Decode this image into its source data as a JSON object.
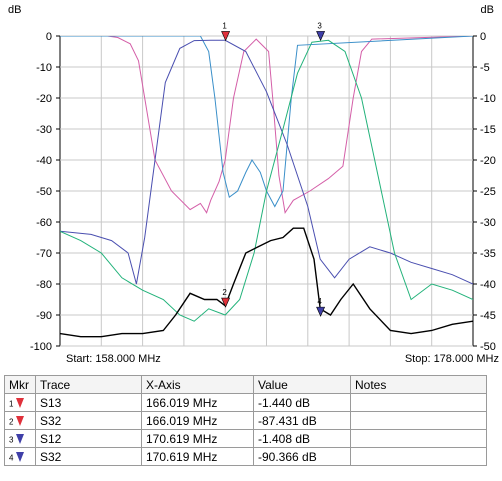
{
  "chart_data": {
    "type": "line",
    "y_unit_left": "dB",
    "y_unit_right": "dB",
    "left_axis": {
      "ylim": [
        -100,
        0
      ],
      "ticks": [
        0,
        -10,
        -20,
        -30,
        -40,
        -50,
        -60,
        -70,
        -80,
        -90,
        -100
      ]
    },
    "right_axis": {
      "ylim": [
        -50,
        0
      ],
      "ticks": [
        0,
        -5,
        -10,
        -15,
        -20,
        -25,
        -30,
        -35,
        -40,
        -45,
        -50
      ]
    },
    "xlim": [
      158.0,
      178.0
    ],
    "start_label": "Start: 158.000 MHz",
    "stop_label": "Stop: 178.000 MHz",
    "grid": true,
    "series": [
      {
        "color": "#d45fa8",
        "axis": "left",
        "x": [
          158.0,
          160.3,
          160.8,
          161.4,
          161.8,
          162.1,
          162.6,
          163.4,
          164.3,
          164.8,
          165.1,
          165.3,
          165.7,
          166.0,
          166.4,
          166.9,
          167.5,
          168.1,
          168.3,
          168.6,
          168.9,
          169.3,
          170.1,
          171.0,
          171.7,
          172.2,
          172.6,
          173.1,
          178.0
        ],
        "y": [
          0,
          0,
          -0.5,
          -2.5,
          -8,
          -20,
          -40,
          -50,
          -56,
          -54,
          -57,
          -53,
          -47,
          -40,
          -20,
          -5,
          -1,
          -5,
          -20,
          -45,
          -57,
          -53,
          -50,
          -46,
          -42,
          -20,
          -5,
          -1,
          0
        ]
      },
      {
        "color": "#3a8fc9",
        "axis": "left",
        "x": [
          158.0,
          164.8,
          165.2,
          165.5,
          165.9,
          166.2,
          166.6,
          167.0,
          167.3,
          167.7,
          168.0,
          168.4,
          168.8,
          169.2,
          169.5,
          178.0
        ],
        "y": [
          0,
          0,
          -5,
          -20,
          -44,
          -52,
          -50,
          -44,
          -40,
          -44,
          -50,
          -55,
          -50,
          -20,
          -3,
          0
        ]
      },
      {
        "color": "#4a4fb0",
        "axis": "left",
        "x": [
          158.0,
          159.5,
          160.5,
          161.3,
          161.7,
          162.1,
          162.6,
          163.1,
          163.8,
          164.5,
          165.3,
          166.0,
          167.0,
          168.0,
          169.0,
          170.0,
          170.6,
          171.3,
          172.0,
          173.0,
          174.0,
          175.0,
          176.0,
          177.0,
          178.0
        ],
        "y": [
          -63,
          -64,
          -66,
          -70,
          -80,
          -65,
          -40,
          -15,
          -4,
          -1.5,
          -1.4,
          -1.4,
          -5,
          -18,
          -35,
          -55,
          -72,
          -78,
          -72,
          -68,
          -70,
          -73,
          -75,
          -77,
          -80
        ]
      },
      {
        "color": "#22b27a",
        "axis": "left",
        "x": [
          158.0,
          159.0,
          160.0,
          161.0,
          162.0,
          163.0,
          163.8,
          164.5,
          165.2,
          166.0,
          166.7,
          167.4,
          168.0,
          168.8,
          169.5,
          170.2,
          171.0,
          171.8,
          172.6,
          173.4,
          174.2,
          175.0,
          176.0,
          177.0,
          178.0
        ],
        "y": [
          -63,
          -66,
          -70,
          -78,
          -82,
          -85,
          -90,
          -92,
          -88,
          -90,
          -85,
          -70,
          -50,
          -30,
          -12,
          -2,
          -1.4,
          -5,
          -20,
          -45,
          -70,
          -85,
          -80,
          -82,
          -85
        ]
      },
      {
        "color": "#000000",
        "axis": "left",
        "x": [
          158.0,
          159.0,
          160.0,
          161.0,
          162.0,
          163.0,
          163.6,
          164.3,
          165.0,
          165.6,
          166.0,
          166.4,
          167.0,
          167.6,
          168.2,
          168.8,
          169.3,
          169.8,
          170.3,
          170.6,
          171.1,
          171.6,
          172.2,
          173.0,
          174.0,
          175.0,
          176.0,
          177.0,
          178.0
        ],
        "y": [
          -96,
          -97,
          -97,
          -96,
          -96,
          -95,
          -90,
          -83,
          -85,
          -85,
          -87,
          -80,
          -70,
          -68,
          -66,
          -65,
          -62,
          -62,
          -72,
          -88,
          -90,
          -85,
          -80,
          -88,
          -95,
          -96,
          -95,
          -93,
          -92
        ]
      }
    ],
    "markers": [
      {
        "label": "1",
        "x": 166.019,
        "y": -1.44,
        "color": "#e0313b"
      },
      {
        "label": "2",
        "x": 166.019,
        "y": -87.431,
        "color": "#e0313b"
      },
      {
        "label": "3",
        "x": 170.619,
        "y": -1.408,
        "color": "#3f3fa8"
      },
      {
        "label": "4",
        "x": 170.619,
        "y": -90.366,
        "color": "#3f3fa8"
      }
    ]
  },
  "table": {
    "headers": {
      "mkr": "Mkr",
      "trace": "Trace",
      "xaxis": "X-Axis",
      "value": "Value",
      "notes": "Notes"
    },
    "rows": [
      {
        "idx": "1",
        "color": "#e0313b",
        "trace": "S13",
        "xaxis": "166.019 MHz",
        "value": "-1.440 dB",
        "notes": ""
      },
      {
        "idx": "2",
        "color": "#e0313b",
        "trace": "S32",
        "xaxis": "166.019 MHz",
        "value": "-87.431 dB",
        "notes": ""
      },
      {
        "idx": "3",
        "color": "#3f3fa8",
        "trace": "S12",
        "xaxis": "170.619 MHz",
        "value": "-1.408 dB",
        "notes": ""
      },
      {
        "idx": "4",
        "color": "#3f3fa8",
        "trace": "S32",
        "xaxis": "170.619 MHz",
        "value": "-90.366 dB",
        "notes": ""
      }
    ]
  }
}
